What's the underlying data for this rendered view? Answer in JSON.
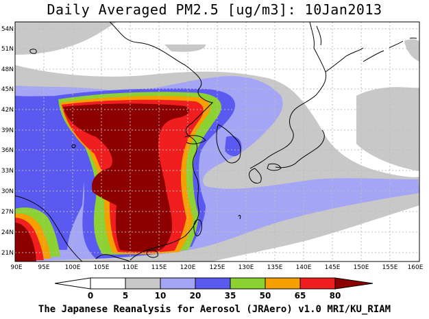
{
  "title": "Daily Averaged PM2.5 [ug/m3]: 10Jan2013",
  "credit": "The Japanese Reanalysis for Aerosol (JRAero) v1.0 MRI/KU_RIAM",
  "lat_labels": [
    "54N",
    "51N",
    "48N",
    "45N",
    "42N",
    "39N",
    "36N",
    "33N",
    "30N",
    "27N",
    "24N",
    "21N"
  ],
  "lon_labels": [
    "90E",
    "95E",
    "100E",
    "105E",
    "110E",
    "115E",
    "120E",
    "125E",
    "130E",
    "135E",
    "140E",
    "145E",
    "150E",
    "155E",
    "160E"
  ],
  "colorbar": {
    "ticks": [
      "0",
      "5",
      "10",
      "20",
      "35",
      "50",
      "65",
      "80"
    ],
    "colors": [
      "#ffffff",
      "#c8c8c8",
      "#a5a5f5",
      "#5a5af0",
      "#8cd232",
      "#f5a000",
      "#f01e1e",
      "#8c0000"
    ]
  },
  "map_colors": {
    "ocean": "#ffffff",
    "land": "#ffffff",
    "coast": "#000000",
    "grid": "#bbbbbb"
  }
}
